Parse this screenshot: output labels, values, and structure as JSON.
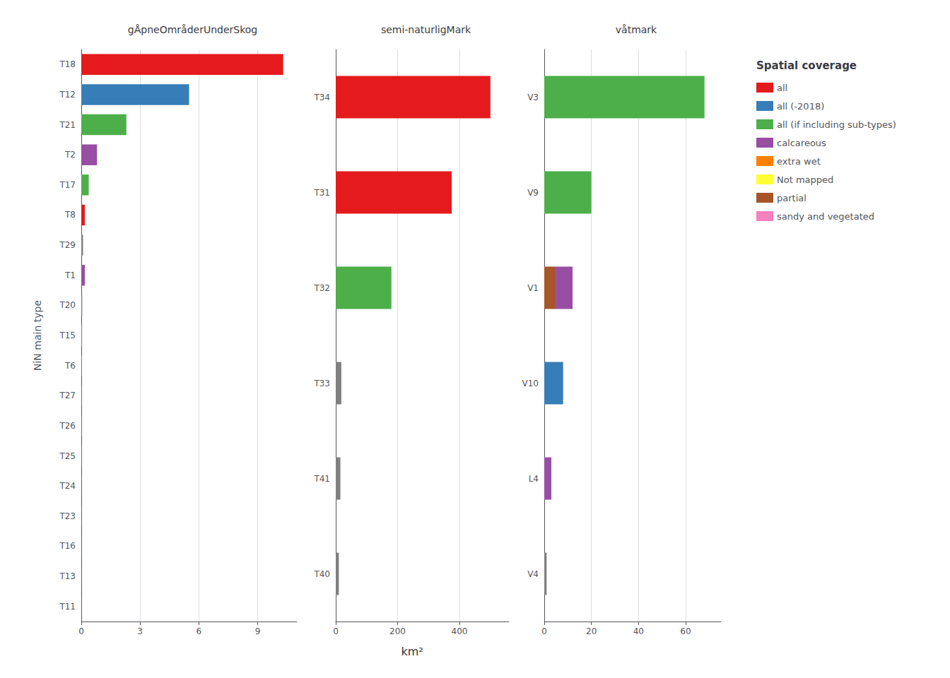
{
  "chart_data": [
    {
      "type": "bar",
      "orientation": "horizontal",
      "title": "gÅpneOmråderUnderSkog",
      "ylabel": "NiN main type",
      "categories": [
        "T18",
        "T12",
        "T21",
        "T2",
        "T17",
        "T8",
        "T29",
        "T1",
        "T20",
        "T15",
        "T6",
        "T27",
        "T26",
        "T25",
        "T24",
        "T23",
        "T16",
        "T13",
        "T11"
      ],
      "series": [
        {
          "values": [
            10.3,
            5.5,
            2.3,
            0.8,
            0.38,
            0.18,
            0.09,
            0.18,
            0.05,
            0.04,
            0.03,
            0.02,
            0.02,
            0.02,
            0.01,
            0.01,
            0.01,
            0.01,
            0.005
          ],
          "colors": [
            "#E41A1C",
            "#377EB8",
            "#4DAF4A",
            "#984EA3",
            "#4DAF4A",
            "#E41A1C",
            "#808080",
            "#984EA3",
            "#808080",
            "#808080",
            "#808080",
            "#808080",
            "#808080",
            "#808080",
            "#808080",
            "#808080",
            "#808080",
            "#808080",
            "#808080"
          ]
        }
      ],
      "xlim": [
        0,
        11
      ],
      "xticks": [
        0,
        3,
        6,
        9
      ],
      "grid": true
    },
    {
      "type": "bar",
      "orientation": "horizontal",
      "title": "semi-naturligMark",
      "categories": [
        "T34",
        "T31",
        "T32",
        "T33",
        "T41",
        "T40"
      ],
      "series": [
        {
          "values": [
            500,
            375,
            180,
            18,
            15,
            10
          ],
          "colors": [
            "#E41A1C",
            "#E41A1C",
            "#4DAF4A",
            "#808080",
            "#808080",
            "#808080"
          ]
        }
      ],
      "xlim": [
        0,
        560
      ],
      "xticks": [
        0,
        200,
        400
      ],
      "grid": true
    },
    {
      "type": "bar",
      "orientation": "horizontal",
      "title": "våtmark",
      "stacked": true,
      "categories": [
        "V3",
        "V9",
        "V1",
        "V10",
        "L4",
        "V4"
      ],
      "series": [
        {
          "values": [
            68,
            20,
            4.5,
            8,
            3,
            1
          ],
          "colors": [
            "#4DAF4A",
            "#4DAF4A",
            "#A65628",
            "#377EB8",
            "#984EA3",
            "#808080"
          ]
        },
        {
          "values": [
            null,
            null,
            7.5,
            null,
            null,
            null
          ],
          "colors": [
            null,
            null,
            "#984EA3",
            null,
            null,
            null
          ]
        }
      ],
      "xlim": [
        0,
        75
      ],
      "xticks": [
        0,
        20,
        40,
        60
      ],
      "grid": true
    }
  ],
  "xlabel": "km²",
  "legend_title": "Spatial coverage",
  "legend_items": [
    {
      "label": "all",
      "color": "#E41A1C"
    },
    {
      "label": "all (-2018)",
      "color": "#377EB8"
    },
    {
      "label": "all (if including sub-types)",
      "color": "#4DAF4A"
    },
    {
      "label": "calcareous",
      "color": "#984EA3"
    },
    {
      "label": "extra wet",
      "color": "#FF7F00"
    },
    {
      "label": "Not mapped",
      "color": "#FFFF33"
    },
    {
      "label": "partial",
      "color": "#A65628"
    },
    {
      "label": "sandy and vegetated",
      "color": "#F781BF"
    }
  ]
}
